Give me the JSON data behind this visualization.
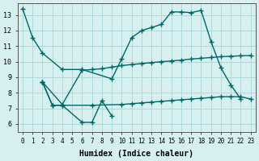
{
  "xlabel": "Humidex (Indice chaleur)",
  "background_color": "#d6f0f0",
  "grid_color": "#b0d8d8",
  "line_color": "#006666",
  "xlim": [
    -0.5,
    23.5
  ],
  "ylim": [
    5.5,
    13.75
  ],
  "xticks": [
    0,
    1,
    2,
    3,
    4,
    5,
    6,
    7,
    8,
    9,
    10,
    11,
    12,
    13,
    14,
    15,
    16,
    17,
    18,
    19,
    20,
    21,
    22,
    23
  ],
  "yticks": [
    6,
    7,
    8,
    9,
    10,
    11,
    12,
    13
  ],
  "line1_x": [
    0,
    1,
    2,
    4,
    6,
    9,
    10,
    11,
    12,
    13,
    14,
    15,
    16,
    17,
    18,
    19,
    20,
    21,
    22
  ],
  "line1_y": [
    13.4,
    11.55,
    10.55,
    9.5,
    9.5,
    8.9,
    10.2,
    11.55,
    12.0,
    12.2,
    12.4,
    13.2,
    13.2,
    13.15,
    13.3,
    11.3,
    9.6,
    8.5,
    7.6
  ],
  "line2_x": [
    2,
    3,
    4,
    6,
    7,
    8,
    9
  ],
  "line2_y": [
    8.7,
    7.2,
    7.2,
    6.1,
    6.1,
    7.5,
    6.5
  ],
  "line3_x": [
    2,
    4,
    6,
    7,
    8,
    9,
    10,
    11,
    12,
    13,
    14,
    15,
    16,
    17,
    18,
    19,
    20,
    21,
    22,
    23
  ],
  "line3_y": [
    8.7,
    7.25,
    9.45,
    9.5,
    9.55,
    9.65,
    9.75,
    9.82,
    9.88,
    9.94,
    10.0,
    10.05,
    10.1,
    10.17,
    10.22,
    10.27,
    10.32,
    10.35,
    10.38,
    10.4
  ],
  "line4_x": [
    2,
    3,
    4,
    7,
    10,
    11,
    12,
    13,
    14,
    15,
    16,
    17,
    18,
    19,
    20,
    21,
    22,
    23
  ],
  "line4_y": [
    8.7,
    7.2,
    7.2,
    7.2,
    7.25,
    7.3,
    7.35,
    7.4,
    7.45,
    7.5,
    7.55,
    7.6,
    7.65,
    7.7,
    7.75,
    7.75,
    7.75,
    7.6
  ]
}
